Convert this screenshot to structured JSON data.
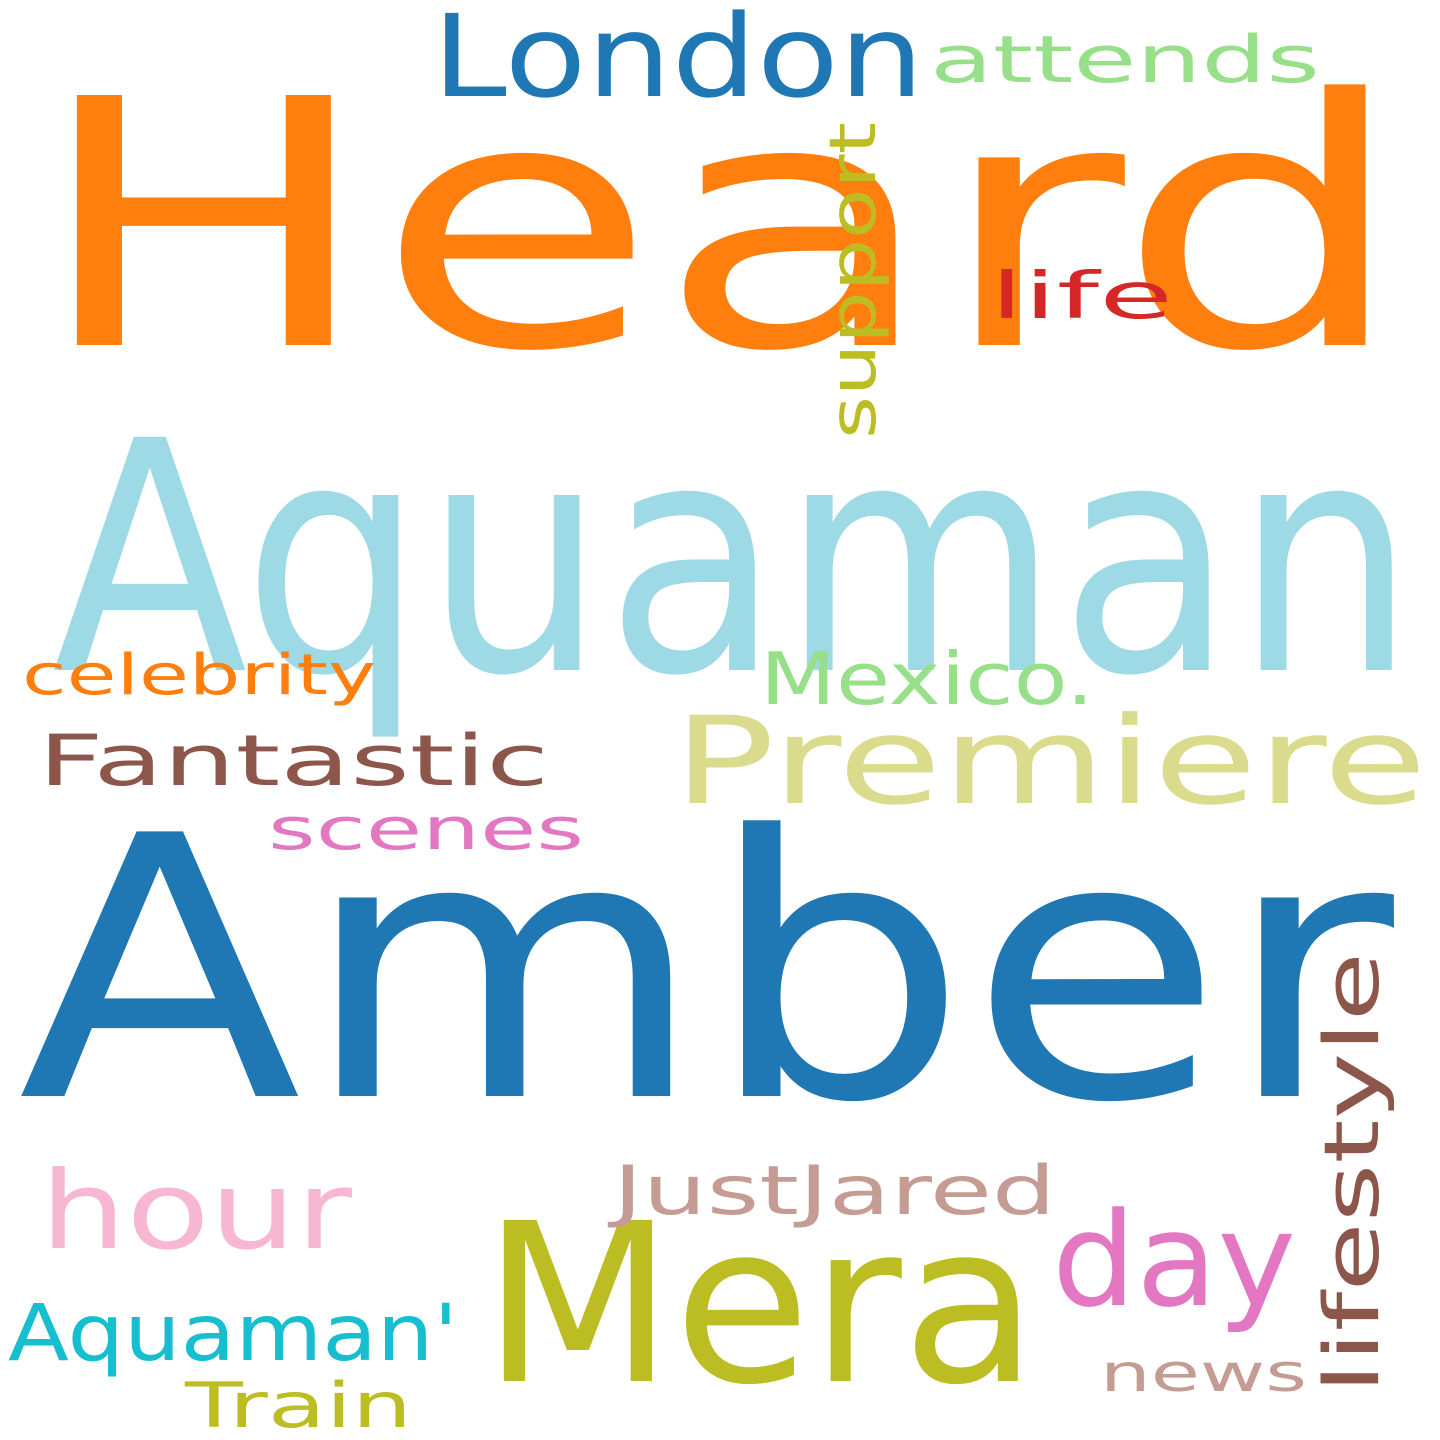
{
  "words": [
    {
      "text": "Heard",
      "color": "#ff7f0e"
    },
    {
      "text": "Amber",
      "color": "#1f77b4"
    },
    {
      "text": "Aquaman",
      "color": "#9edae5"
    },
    {
      "text": "Mera",
      "color": "#bcbd22"
    },
    {
      "text": "Premiere",
      "color": "#dbdb8d"
    },
    {
      "text": "London",
      "color": "#1f77b4"
    },
    {
      "text": "hour",
      "color": "#f7b6d2"
    },
    {
      "text": "day",
      "color": "#e377c2"
    },
    {
      "text": "attends",
      "color": "#98df8a"
    },
    {
      "text": "Aquaman'",
      "color": "#17becf"
    },
    {
      "text": "Fantastic",
      "color": "#8c564b"
    },
    {
      "text": "lifestyle",
      "color": "#8c564b"
    },
    {
      "text": "Mexico.",
      "color": "#98df8a"
    },
    {
      "text": "JustJared",
      "color": "#c49c94"
    },
    {
      "text": "scenes",
      "color": "#e377c2"
    },
    {
      "text": "support",
      "color": "#bcbd22"
    },
    {
      "text": "news",
      "color": "#c49c94"
    },
    {
      "text": "celebrity",
      "color": "#ff7f0e"
    },
    {
      "text": "Train",
      "color": "#bcbd22"
    },
    {
      "text": "life",
      "color": "#d62728"
    }
  ]
}
